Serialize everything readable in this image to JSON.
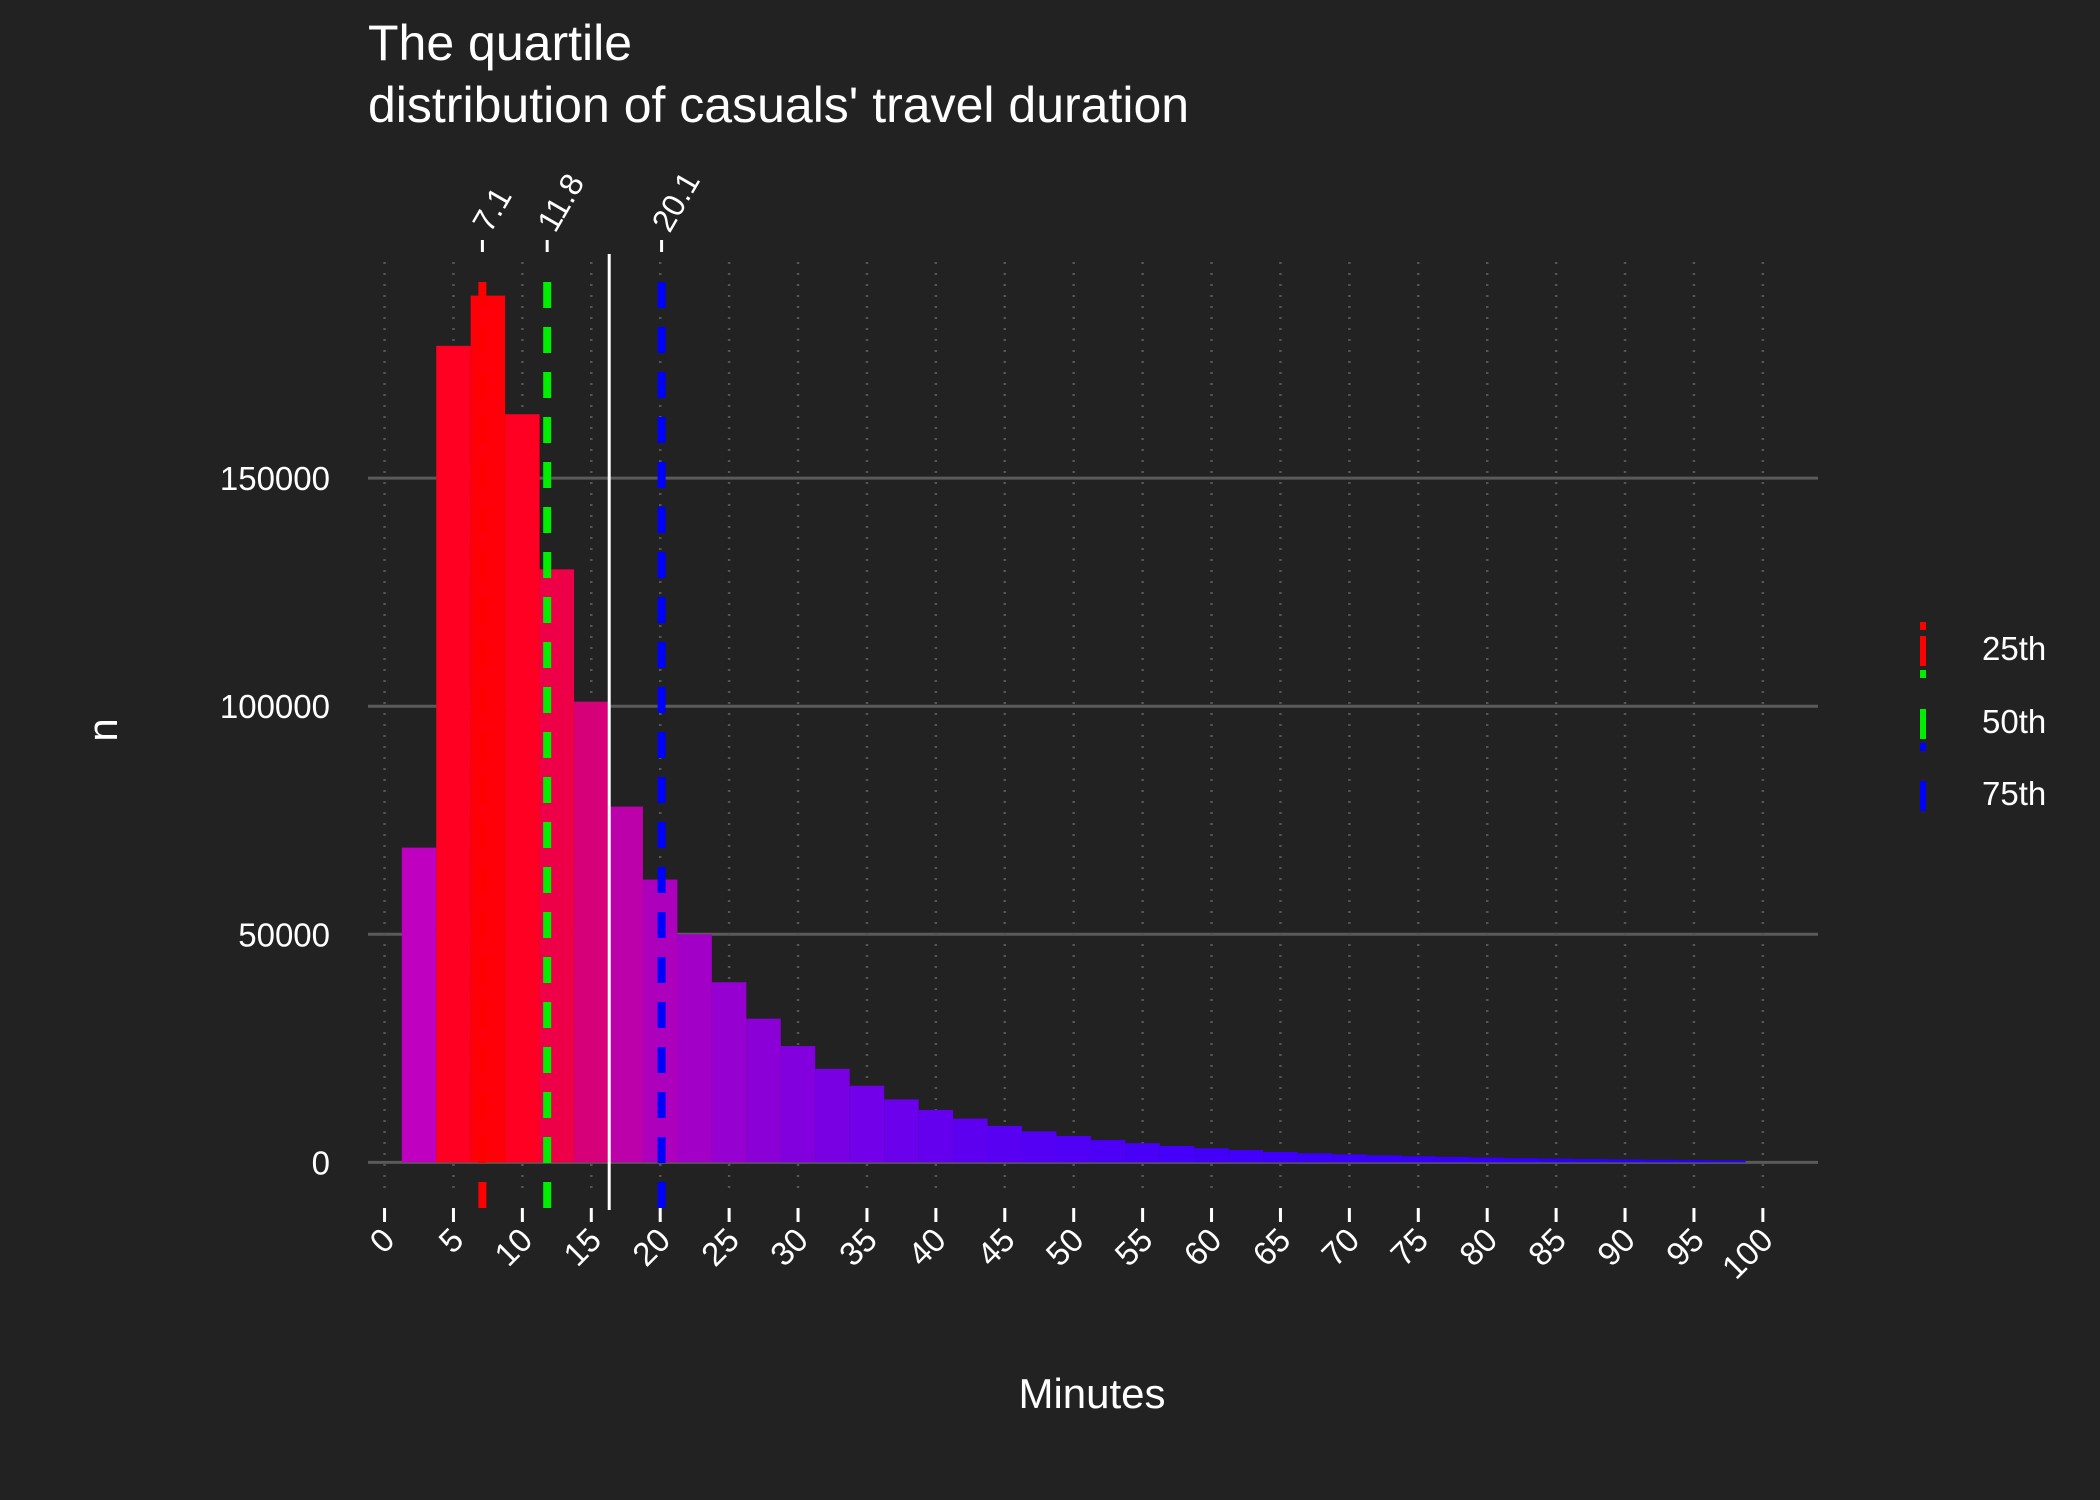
{
  "chart_data": {
    "type": "bar",
    "title_lines": [
      "The quartile",
      "distribution of casuals' travel duration"
    ],
    "xlabel": "Minutes",
    "ylabel": "n",
    "xlim": [
      -1.2,
      104
    ],
    "ylim": [
      -10000,
      200000
    ],
    "x_ticks": [
      "0",
      "5",
      "10",
      "15",
      "20",
      "25",
      "30",
      "35",
      "40",
      "45",
      "50",
      "55",
      "60",
      "65",
      "70",
      "75",
      "80",
      "85",
      "90",
      "95",
      "100"
    ],
    "y_ticks": [
      "0",
      "50000",
      "100000",
      "150000"
    ],
    "grid": "on",
    "bin_width": 2.5,
    "bins": [
      {
        "x": 2.5,
        "n": 69000,
        "color": "#C000C0"
      },
      {
        "x": 5.0,
        "n": 179000,
        "color": "#FF0022"
      },
      {
        "x": 7.5,
        "n": 190000,
        "color": "#FF0008"
      },
      {
        "x": 10.0,
        "n": 164000,
        "color": "#FF0022"
      },
      {
        "x": 12.5,
        "n": 130000,
        "color": "#EE0048"
      },
      {
        "x": 15.0,
        "n": 101000,
        "color": "#D60078"
      },
      {
        "x": 17.5,
        "n": 78000,
        "color": "#BC00AA"
      },
      {
        "x": 20.0,
        "n": 62000,
        "color": "#AC00BC"
      },
      {
        "x": 22.5,
        "n": 50000,
        "color": "#A200C6"
      },
      {
        "x": 25.0,
        "n": 39500,
        "color": "#9600D0"
      },
      {
        "x": 27.5,
        "n": 31500,
        "color": "#8C00D8"
      },
      {
        "x": 30.0,
        "n": 25500,
        "color": "#8200DE"
      },
      {
        "x": 32.5,
        "n": 20500,
        "color": "#7A00E4"
      },
      {
        "x": 35.0,
        "n": 16800,
        "color": "#7200E8"
      },
      {
        "x": 37.5,
        "n": 13800,
        "color": "#6A00EC"
      },
      {
        "x": 40.0,
        "n": 11500,
        "color": "#6400EE"
      },
      {
        "x": 42.5,
        "n": 9600,
        "color": "#5E00F0"
      },
      {
        "x": 45.0,
        "n": 8000,
        "color": "#5800F2"
      },
      {
        "x": 47.5,
        "n": 6800,
        "color": "#5400F4"
      },
      {
        "x": 50.0,
        "n": 5800,
        "color": "#5000F5"
      },
      {
        "x": 52.5,
        "n": 4900,
        "color": "#4C00F6"
      },
      {
        "x": 55.0,
        "n": 4200,
        "color": "#4800F7"
      },
      {
        "x": 57.5,
        "n": 3600,
        "color": "#4400F8"
      },
      {
        "x": 60.0,
        "n": 3100,
        "color": "#4200F9"
      },
      {
        "x": 62.5,
        "n": 2700,
        "color": "#4000F9"
      },
      {
        "x": 65.0,
        "n": 2300,
        "color": "#3E00FA"
      },
      {
        "x": 67.5,
        "n": 2000,
        "color": "#3C00FA"
      },
      {
        "x": 70.0,
        "n": 1750,
        "color": "#3A00FB"
      },
      {
        "x": 72.5,
        "n": 1550,
        "color": "#3800FB"
      },
      {
        "x": 75.0,
        "n": 1350,
        "color": "#3600FB"
      },
      {
        "x": 77.5,
        "n": 1200,
        "color": "#3400FC"
      },
      {
        "x": 80.0,
        "n": 1050,
        "color": "#3200FC"
      },
      {
        "x": 82.5,
        "n": 920,
        "color": "#3000FC"
      },
      {
        "x": 85.0,
        "n": 820,
        "color": "#2E00FC"
      },
      {
        "x": 87.5,
        "n": 730,
        "color": "#2C00FD"
      },
      {
        "x": 90.0,
        "n": 650,
        "color": "#2A00FD"
      },
      {
        "x": 92.5,
        "n": 580,
        "color": "#2800FD"
      },
      {
        "x": 95.0,
        "n": 520,
        "color": "#2600FD"
      },
      {
        "x": 97.5,
        "n": 460,
        "color": "#2400FE"
      }
    ],
    "mean_line": {
      "x": 16.3,
      "color": "#ffffff"
    },
    "quartiles": [
      {
        "name": "25th",
        "value": 7.1,
        "label": "7.1",
        "color": "#ff0000"
      },
      {
        "name": "50th",
        "value": 11.8,
        "label": "11.8",
        "color": "#00ee00"
      },
      {
        "name": "75th",
        "value": 20.1,
        "label": "20.1",
        "color": "#0000ff"
      }
    ],
    "legend": {
      "position": "right",
      "entries": [
        "25th",
        "50th",
        "75th"
      ]
    }
  }
}
